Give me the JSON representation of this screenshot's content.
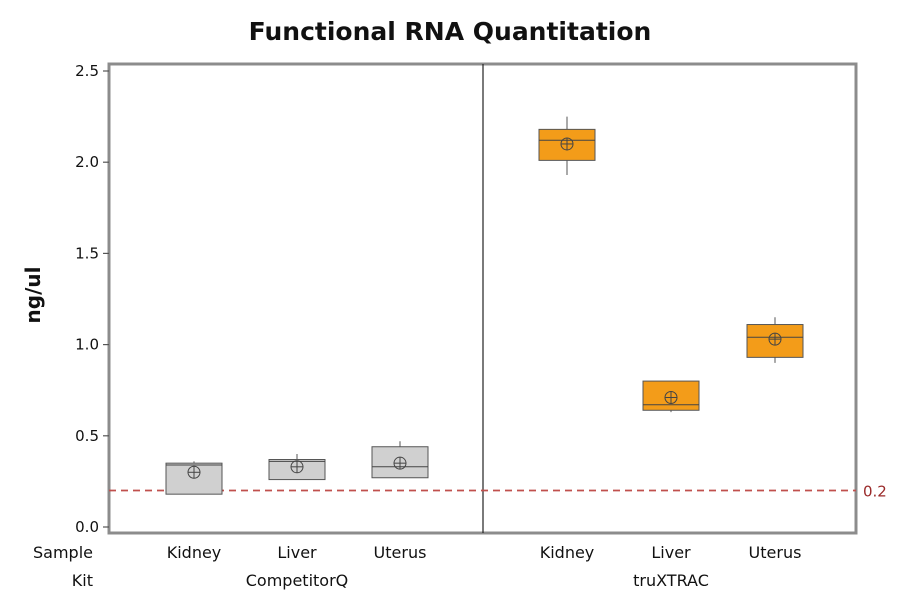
{
  "chart_data": {
    "type": "boxplot",
    "title": "Functional RNA Quantitation",
    "ylabel": "ng/ul",
    "ylim": [
      0,
      2.5
    ],
    "yticks": [
      "0.0",
      "0.5",
      "1.0",
      "1.5",
      "2.0",
      "2.5"
    ],
    "row_labels": {
      "sample": "Sample",
      "kit": "Kit"
    },
    "reference_line": {
      "value": 0.2,
      "label": "0.2",
      "style": "dashed",
      "color": "#c0504d"
    },
    "colors": {
      "CompetitorQ": "#d0d0d0",
      "truXTRAC": "#f39c19"
    },
    "groups": [
      {
        "kit": "CompetitorQ",
        "boxes": [
          {
            "sample": "Kidney",
            "whisker_low": 0.18,
            "q1": 0.18,
            "median": 0.34,
            "q3": 0.35,
            "whisker_high": 0.36,
            "mean": 0.3
          },
          {
            "sample": "Liver",
            "whisker_low": 0.26,
            "q1": 0.26,
            "median": 0.36,
            "q3": 0.37,
            "whisker_high": 0.4,
            "mean": 0.33
          },
          {
            "sample": "Uterus",
            "whisker_low": 0.27,
            "q1": 0.27,
            "median": 0.33,
            "q3": 0.44,
            "whisker_high": 0.47,
            "mean": 0.35
          }
        ]
      },
      {
        "kit": "truXTRAC",
        "boxes": [
          {
            "sample": "Kidney",
            "whisker_low": 1.93,
            "q1": 2.01,
            "median": 2.12,
            "q3": 2.18,
            "whisker_high": 2.25,
            "mean": 2.1
          },
          {
            "sample": "Liver",
            "whisker_low": 0.63,
            "q1": 0.64,
            "median": 0.67,
            "q3": 0.8,
            "whisker_high": 0.8,
            "mean": 0.71
          },
          {
            "sample": "Uterus",
            "whisker_low": 0.9,
            "q1": 0.93,
            "median": 1.04,
            "q3": 1.11,
            "whisker_high": 1.15,
            "mean": 1.03
          }
        ]
      }
    ]
  }
}
